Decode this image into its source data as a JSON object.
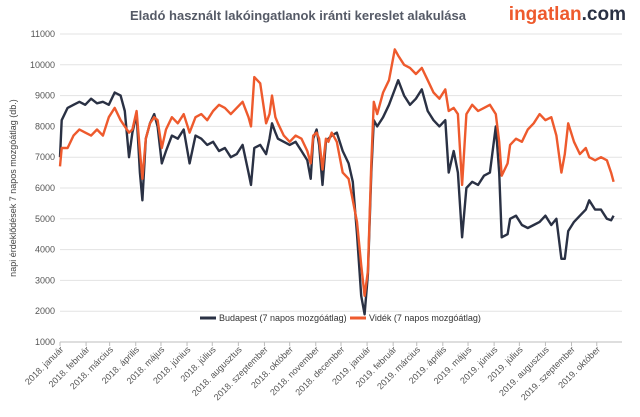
{
  "header": {
    "title": "Eladó használt lakóingatlanok iránti kereslet alakulása",
    "logo_part1": "ingatlan",
    "logo_part2": ".com"
  },
  "chart_data": {
    "type": "line",
    "title": "Eladó használt lakóingatlanok iránti kereslet alakulása",
    "ylabel": "napi érdeklődések 7 napos mozgóátlag (db.)",
    "xlabel": "",
    "ylim": [
      1000,
      11000
    ],
    "yticks": [
      1000,
      2000,
      3000,
      4000,
      5000,
      6000,
      7000,
      8000,
      9000,
      10000,
      11000
    ],
    "grid": "horizontal",
    "legend_position": "bottom-center",
    "x_range": [
      "2018-01-01",
      "2019-10-31"
    ],
    "x_ticks": [
      {
        "date": "2018-01-01",
        "label": "2018. január"
      },
      {
        "date": "2018-02-01",
        "label": "2018. február"
      },
      {
        "date": "2018-03-01",
        "label": "2018. március"
      },
      {
        "date": "2018-04-01",
        "label": "2018. április"
      },
      {
        "date": "2018-05-01",
        "label": "2018. május"
      },
      {
        "date": "2018-06-01",
        "label": "2018. június"
      },
      {
        "date": "2018-07-01",
        "label": "2018. július"
      },
      {
        "date": "2018-08-01",
        "label": "2018. augusztus"
      },
      {
        "date": "2018-09-01",
        "label": "2018. szeptember"
      },
      {
        "date": "2018-10-01",
        "label": "2018. október"
      },
      {
        "date": "2018-11-01",
        "label": "2018. november"
      },
      {
        "date": "2018-12-01",
        "label": "2018. december"
      },
      {
        "date": "2019-01-01",
        "label": "2019. január"
      },
      {
        "date": "2019-02-01",
        "label": "2019. február"
      },
      {
        "date": "2019-03-01",
        "label": "2019. március"
      },
      {
        "date": "2019-04-01",
        "label": "2019. április"
      },
      {
        "date": "2019-05-01",
        "label": "2019. május"
      },
      {
        "date": "2019-06-01",
        "label": "2019. június"
      },
      {
        "date": "2019-07-01",
        "label": "2019. július"
      },
      {
        "date": "2019-08-01",
        "label": "2019. augusztus"
      },
      {
        "date": "2019-09-01",
        "label": "2019. szeptember"
      },
      {
        "date": "2019-10-01",
        "label": "2019. október"
      }
    ],
    "series": [
      {
        "name": "Budapest (7 napos mozgóátlag)",
        "color": "#2a3144",
        "points": [
          [
            "2018-01-01",
            7000
          ],
          [
            "2018-01-03",
            8200
          ],
          [
            "2018-01-10",
            8600
          ],
          [
            "2018-01-17",
            8700
          ],
          [
            "2018-01-24",
            8800
          ],
          [
            "2018-01-31",
            8700
          ],
          [
            "2018-02-07",
            8900
          ],
          [
            "2018-02-14",
            8750
          ],
          [
            "2018-02-21",
            8800
          ],
          [
            "2018-02-28",
            8700
          ],
          [
            "2018-03-07",
            9100
          ],
          [
            "2018-03-14",
            9000
          ],
          [
            "2018-03-19",
            8500
          ],
          [
            "2018-03-24",
            7000
          ],
          [
            "2018-03-28",
            7800
          ],
          [
            "2018-04-02",
            8400
          ],
          [
            "2018-04-06",
            6500
          ],
          [
            "2018-04-09",
            5600
          ],
          [
            "2018-04-13",
            7600
          ],
          [
            "2018-04-18",
            8100
          ],
          [
            "2018-04-23",
            8400
          ],
          [
            "2018-04-27",
            8000
          ],
          [
            "2018-05-02",
            6800
          ],
          [
            "2018-05-07",
            7200
          ],
          [
            "2018-05-14",
            7700
          ],
          [
            "2018-05-21",
            7600
          ],
          [
            "2018-05-28",
            7900
          ],
          [
            "2018-06-04",
            6800
          ],
          [
            "2018-06-11",
            7700
          ],
          [
            "2018-06-18",
            7600
          ],
          [
            "2018-06-25",
            7400
          ],
          [
            "2018-07-02",
            7500
          ],
          [
            "2018-07-09",
            7200
          ],
          [
            "2018-07-16",
            7300
          ],
          [
            "2018-07-23",
            7000
          ],
          [
            "2018-07-30",
            7100
          ],
          [
            "2018-08-06",
            7400
          ],
          [
            "2018-08-13",
            6500
          ],
          [
            "2018-08-16",
            6100
          ],
          [
            "2018-08-20",
            7300
          ],
          [
            "2018-08-27",
            7400
          ],
          [
            "2018-09-03",
            7100
          ],
          [
            "2018-09-07",
            7600
          ],
          [
            "2018-09-10",
            8100
          ],
          [
            "2018-09-14",
            7800
          ],
          [
            "2018-09-17",
            7600
          ],
          [
            "2018-09-24",
            7500
          ],
          [
            "2018-10-01",
            7400
          ],
          [
            "2018-10-08",
            7500
          ],
          [
            "2018-10-15",
            7200
          ],
          [
            "2018-10-22",
            6900
          ],
          [
            "2018-10-26",
            6300
          ],
          [
            "2018-10-29",
            7600
          ],
          [
            "2018-11-02",
            7900
          ],
          [
            "2018-11-05",
            7400
          ],
          [
            "2018-11-09",
            6100
          ],
          [
            "2018-11-13",
            7500
          ],
          [
            "2018-11-16",
            7600
          ],
          [
            "2018-11-20",
            7700
          ],
          [
            "2018-11-26",
            7800
          ],
          [
            "2018-12-03",
            7200
          ],
          [
            "2018-12-10",
            6800
          ],
          [
            "2018-12-15",
            6200
          ],
          [
            "2018-12-20",
            4500
          ],
          [
            "2018-12-25",
            2500
          ],
          [
            "2018-12-29",
            1900
          ],
          [
            "2019-01-02",
            3200
          ],
          [
            "2019-01-06",
            6500
          ],
          [
            "2019-01-09",
            8200
          ],
          [
            "2019-01-13",
            8000
          ],
          [
            "2019-01-20",
            8300
          ],
          [
            "2019-01-27",
            8700
          ],
          [
            "2019-02-03",
            9200
          ],
          [
            "2019-02-07",
            9500
          ],
          [
            "2019-02-14",
            9000
          ],
          [
            "2019-02-21",
            8700
          ],
          [
            "2019-02-28",
            8900
          ],
          [
            "2019-03-07",
            9200
          ],
          [
            "2019-03-14",
            8500
          ],
          [
            "2019-03-21",
            8200
          ],
          [
            "2019-03-28",
            8000
          ],
          [
            "2019-04-04",
            8200
          ],
          [
            "2019-04-08",
            6500
          ],
          [
            "2019-04-14",
            7200
          ],
          [
            "2019-04-19",
            6500
          ],
          [
            "2019-04-24",
            4400
          ],
          [
            "2019-04-29",
            6000
          ],
          [
            "2019-05-06",
            6200
          ],
          [
            "2019-05-13",
            6100
          ],
          [
            "2019-05-20",
            6400
          ],
          [
            "2019-05-27",
            6500
          ],
          [
            "2019-06-03",
            8000
          ],
          [
            "2019-06-07",
            6500
          ],
          [
            "2019-06-10",
            4400
          ],
          [
            "2019-06-17",
            4500
          ],
          [
            "2019-06-20",
            5000
          ],
          [
            "2019-06-27",
            5100
          ],
          [
            "2019-07-04",
            4800
          ],
          [
            "2019-07-11",
            4700
          ],
          [
            "2019-07-18",
            4800
          ],
          [
            "2019-07-25",
            4900
          ],
          [
            "2019-08-01",
            5100
          ],
          [
            "2019-08-08",
            4800
          ],
          [
            "2019-08-14",
            5000
          ],
          [
            "2019-08-20",
            3700
          ],
          [
            "2019-08-24",
            3700
          ],
          [
            "2019-08-28",
            4600
          ],
          [
            "2019-09-04",
            4900
          ],
          [
            "2019-09-11",
            5100
          ],
          [
            "2019-09-18",
            5300
          ],
          [
            "2019-09-22",
            5600
          ],
          [
            "2019-09-29",
            5300
          ],
          [
            "2019-10-06",
            5300
          ],
          [
            "2019-10-13",
            5000
          ],
          [
            "2019-10-18",
            4950
          ],
          [
            "2019-10-21",
            5100
          ]
        ]
      },
      {
        "name": "Vidék (7 napos mozgóátlag)",
        "color": "#ee5a2d",
        "points": [
          [
            "2018-01-01",
            6700
          ],
          [
            "2018-01-03",
            7300
          ],
          [
            "2018-01-10",
            7300
          ],
          [
            "2018-01-17",
            7700
          ],
          [
            "2018-01-24",
            7900
          ],
          [
            "2018-01-31",
            7800
          ],
          [
            "2018-02-07",
            7700
          ],
          [
            "2018-02-14",
            7900
          ],
          [
            "2018-02-21",
            7700
          ],
          [
            "2018-02-28",
            8300
          ],
          [
            "2018-03-07",
            8600
          ],
          [
            "2018-03-14",
            8200
          ],
          [
            "2018-03-19",
            8000
          ],
          [
            "2018-03-24",
            7800
          ],
          [
            "2018-03-28",
            7900
          ],
          [
            "2018-04-02",
            8500
          ],
          [
            "2018-04-06",
            7200
          ],
          [
            "2018-04-09",
            6300
          ],
          [
            "2018-04-13",
            7600
          ],
          [
            "2018-04-18",
            8100
          ],
          [
            "2018-04-23",
            8300
          ],
          [
            "2018-04-27",
            8200
          ],
          [
            "2018-05-02",
            7300
          ],
          [
            "2018-05-07",
            7900
          ],
          [
            "2018-05-14",
            8300
          ],
          [
            "2018-05-21",
            8100
          ],
          [
            "2018-05-28",
            8400
          ],
          [
            "2018-06-04",
            7800
          ],
          [
            "2018-06-11",
            8300
          ],
          [
            "2018-06-18",
            8400
          ],
          [
            "2018-06-25",
            8200
          ],
          [
            "2018-07-02",
            8500
          ],
          [
            "2018-07-09",
            8700
          ],
          [
            "2018-07-16",
            8600
          ],
          [
            "2018-07-23",
            8400
          ],
          [
            "2018-07-30",
            8600
          ],
          [
            "2018-08-06",
            8800
          ],
          [
            "2018-08-13",
            8300
          ],
          [
            "2018-08-16",
            8000
          ],
          [
            "2018-08-20",
            9600
          ],
          [
            "2018-08-27",
            9400
          ],
          [
            "2018-09-03",
            8100
          ],
          [
            "2018-09-07",
            8400
          ],
          [
            "2018-09-10",
            9000
          ],
          [
            "2018-09-14",
            8300
          ],
          [
            "2018-09-17",
            8100
          ],
          [
            "2018-09-24",
            7700
          ],
          [
            "2018-10-01",
            7500
          ],
          [
            "2018-10-08",
            7700
          ],
          [
            "2018-10-15",
            7600
          ],
          [
            "2018-10-22",
            7200
          ],
          [
            "2018-10-26",
            6800
          ],
          [
            "2018-10-29",
            7700
          ],
          [
            "2018-11-02",
            7800
          ],
          [
            "2018-11-05",
            7600
          ],
          [
            "2018-11-09",
            6600
          ],
          [
            "2018-11-13",
            7600
          ],
          [
            "2018-11-16",
            7500
          ],
          [
            "2018-11-20",
            7800
          ],
          [
            "2018-11-26",
            7500
          ],
          [
            "2018-12-03",
            6500
          ],
          [
            "2018-12-10",
            6300
          ],
          [
            "2018-12-15",
            5600
          ],
          [
            "2018-12-20",
            4900
          ],
          [
            "2018-12-25",
            3500
          ],
          [
            "2018-12-29",
            2500
          ],
          [
            "2019-01-02",
            3300
          ],
          [
            "2019-01-06",
            6800
          ],
          [
            "2019-01-09",
            8800
          ],
          [
            "2019-01-13",
            8400
          ],
          [
            "2019-01-20",
            9100
          ],
          [
            "2019-01-27",
            9500
          ],
          [
            "2019-02-03",
            10500
          ],
          [
            "2019-02-07",
            10300
          ],
          [
            "2019-02-14",
            10000
          ],
          [
            "2019-02-21",
            9900
          ],
          [
            "2019-02-28",
            9700
          ],
          [
            "2019-03-07",
            9900
          ],
          [
            "2019-03-14",
            9500
          ],
          [
            "2019-03-21",
            9100
          ],
          [
            "2019-03-28",
            8900
          ],
          [
            "2019-04-04",
            9200
          ],
          [
            "2019-04-08",
            8500
          ],
          [
            "2019-04-14",
            8600
          ],
          [
            "2019-04-19",
            8400
          ],
          [
            "2019-04-24",
            6100
          ],
          [
            "2019-04-29",
            8400
          ],
          [
            "2019-05-06",
            8700
          ],
          [
            "2019-05-13",
            8500
          ],
          [
            "2019-05-20",
            8600
          ],
          [
            "2019-05-27",
            8700
          ],
          [
            "2019-06-03",
            8400
          ],
          [
            "2019-06-07",
            7500
          ],
          [
            "2019-06-10",
            6400
          ],
          [
            "2019-06-17",
            6800
          ],
          [
            "2019-06-20",
            7400
          ],
          [
            "2019-06-27",
            7600
          ],
          [
            "2019-07-04",
            7500
          ],
          [
            "2019-07-11",
            7900
          ],
          [
            "2019-07-18",
            8100
          ],
          [
            "2019-07-25",
            8400
          ],
          [
            "2019-08-01",
            8200
          ],
          [
            "2019-08-08",
            8300
          ],
          [
            "2019-08-14",
            7700
          ],
          [
            "2019-08-20",
            6500
          ],
          [
            "2019-08-24",
            7100
          ],
          [
            "2019-08-28",
            8100
          ],
          [
            "2019-09-04",
            7500
          ],
          [
            "2019-09-11",
            7100
          ],
          [
            "2019-09-18",
            7300
          ],
          [
            "2019-09-22",
            7000
          ],
          [
            "2019-09-29",
            6900
          ],
          [
            "2019-10-06",
            7000
          ],
          [
            "2019-10-13",
            6900
          ],
          [
            "2019-10-18",
            6500
          ],
          [
            "2019-10-21",
            6200
          ]
        ]
      }
    ]
  }
}
